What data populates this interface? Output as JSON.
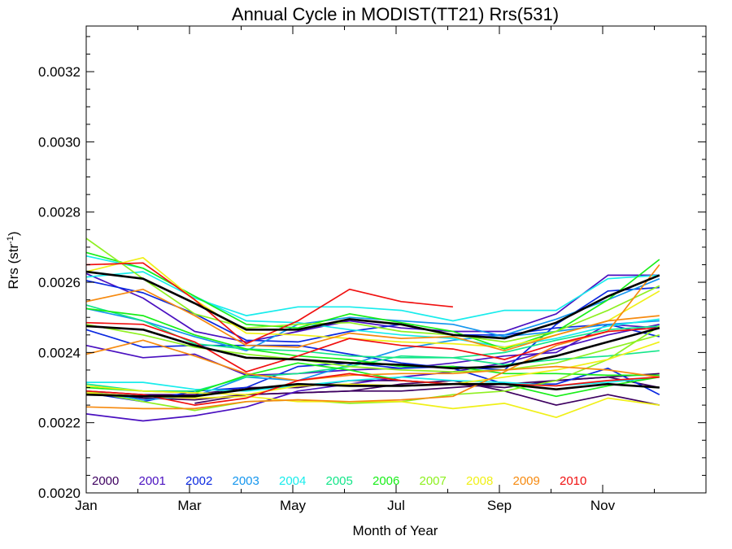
{
  "chart_data": {
    "type": "line",
    "title": "Annual Cycle in MODIST(TT21) Rrs(531)",
    "xlabel": "Month of Year",
    "ylabel": "Rrs (str",
    "ylabel_sup": "-1",
    "ylabel_close": ")",
    "xlim": [
      1,
      13
    ],
    "ylim": [
      0.002,
      0.00333
    ],
    "x": [
      1.0,
      2.1,
      3.1,
      4.1,
      5.1,
      6.1,
      7.1,
      8.1,
      9.1,
      10.1,
      11.1,
      12.1
    ],
    "x_ticks": [
      {
        "value": 1,
        "label": "Jan"
      },
      {
        "value": 3,
        "label": "Mar"
      },
      {
        "value": 5,
        "label": "May"
      },
      {
        "value": 7,
        "label": "Jul"
      },
      {
        "value": 9,
        "label": "Sep"
      },
      {
        "value": 11,
        "label": "Nov"
      }
    ],
    "x_minor_ticks": [
      2,
      4,
      6,
      8,
      10,
      12
    ],
    "y_ticks": [
      {
        "value": 0.002,
        "label": "0.0020"
      },
      {
        "value": 0.0022,
        "label": "0.0022"
      },
      {
        "value": 0.0024,
        "label": "0.0024"
      },
      {
        "value": 0.0026,
        "label": "0.0026"
      },
      {
        "value": 0.0028,
        "label": "0.0028"
      },
      {
        "value": 0.003,
        "label": "0.0030"
      },
      {
        "value": 0.0032,
        "label": "0.0032"
      }
    ],
    "y_minor_step": 5e-05,
    "grid": false,
    "legend_position": "bottom-left inside",
    "legend": [
      {
        "label": "2000",
        "color": "#3d0060"
      },
      {
        "label": "2001",
        "color": "#4a10c0"
      },
      {
        "label": "2002",
        "color": "#0a28e0"
      },
      {
        "label": "2003",
        "color": "#1496ee"
      },
      {
        "label": "2004",
        "color": "#18ecec"
      },
      {
        "label": "2005",
        "color": "#14e68a"
      },
      {
        "label": "2006",
        "color": "#18ee18"
      },
      {
        "label": "2007",
        "color": "#8ef020"
      },
      {
        "label": "2008",
        "color": "#f0f018"
      },
      {
        "label": "2009",
        "color": "#f68a10"
      },
      {
        "label": "2010",
        "color": "#f01010"
      }
    ],
    "series": [
      {
        "color": "#3d0060",
        "values": [
          0.002285,
          0.00227,
          0.002265,
          0.00228,
          0.002285,
          0.00229,
          0.00231,
          0.00232,
          0.00229,
          0.00225,
          0.00228,
          0.00225
        ]
      },
      {
        "color": "#3d0060",
        "values": [
          0.00229,
          0.00228,
          0.00228,
          0.0023,
          0.0023,
          0.00232,
          0.00232,
          0.00231,
          0.0023,
          0.00232,
          0.00233,
          0.0023
        ]
      },
      {
        "color": "#3d0060",
        "values": [
          null,
          null,
          0.002255,
          0.00228,
          0.002285,
          0.00229,
          0.00229,
          0.0023,
          0.00231,
          0.00232,
          0.00233,
          0.00234
        ]
      },
      {
        "color": "#4a10c0",
        "values": [
          0.002225,
          0.002205,
          0.00222,
          0.002245,
          0.00229,
          0.00231,
          0.00233,
          0.002345,
          0.00237,
          0.00241,
          0.00245,
          0.00248
        ]
      },
      {
        "color": "#4a10c0",
        "values": [
          0.00242,
          0.002385,
          0.002395,
          0.002335,
          0.00234,
          0.00235,
          0.002355,
          0.00237,
          0.00239,
          0.0024,
          0.00248,
          0.00247
        ]
      },
      {
        "color": "#4a10c0",
        "values": [
          0.002625,
          0.002555,
          0.00246,
          0.00243,
          0.00246,
          0.00249,
          0.00247,
          0.00246,
          0.00246,
          0.00251,
          0.00262,
          0.00262
        ]
      },
      {
        "color": "#0a28e0",
        "values": [
          0.002285,
          0.00226,
          0.00229,
          0.0023,
          0.00236,
          0.00237,
          0.002355,
          0.00236,
          0.00235,
          0.00248,
          0.002575,
          0.002585
        ]
      },
      {
        "color": "#0a28e0",
        "values": [
          0.002465,
          0.002415,
          0.00242,
          0.00242,
          0.00242,
          0.002395,
          0.00237,
          0.002355,
          0.00231,
          0.00231,
          0.002355,
          0.00228
        ]
      },
      {
        "color": "#0a28e0",
        "values": [
          0.002605,
          0.00257,
          0.00251,
          0.002435,
          0.00243,
          0.00246,
          0.00248,
          0.00245,
          0.00245,
          0.00247,
          0.00248,
          0.002445
        ]
      },
      {
        "color": "#1496ee",
        "values": [
          0.00229,
          0.002265,
          0.002275,
          0.00233,
          0.00232,
          0.002365,
          0.00241,
          0.002435,
          0.00245,
          0.002495,
          0.00255,
          0.00261
        ]
      },
      {
        "color": "#1496ee",
        "values": [
          0.002525,
          0.00249,
          0.002445,
          0.002405,
          0.00248,
          0.0025,
          0.00249,
          0.00248,
          0.002445,
          0.00246,
          0.00248,
          0.00249
        ]
      },
      {
        "color": "#18ecec",
        "values": [
          0.002315,
          0.002315,
          0.002295,
          0.00229,
          0.002305,
          0.00232,
          0.00233,
          0.00232,
          0.002315,
          0.002305,
          0.002315,
          0.00233
        ]
      },
      {
        "color": "#18ecec",
        "values": [
          0.002615,
          0.00263,
          0.002555,
          0.002505,
          0.00253,
          0.00253,
          0.00252,
          0.00249,
          0.00252,
          0.00252,
          0.00261,
          0.00262
        ]
      },
      {
        "color": "#18ecec",
        "values": [
          0.002675,
          0.00264,
          0.00256,
          0.00249,
          0.002485,
          0.002465,
          0.00245,
          0.00244,
          0.002415,
          0.00244,
          0.002475,
          0.002495
        ]
      },
      {
        "color": "#14e68a",
        "values": [
          0.002535,
          0.00249,
          0.002425,
          0.00241,
          0.002405,
          0.00239,
          0.002385,
          0.002385,
          0.0024,
          0.002435,
          0.002465,
          0.002475
        ]
      },
      {
        "color": "#14e68a",
        "values": [
          0.00231,
          0.00229,
          0.00229,
          0.00233,
          0.00234,
          0.00236,
          0.00239,
          0.002385,
          0.002365,
          0.00238,
          0.00239,
          0.002405
        ]
      },
      {
        "color": "#18ee18",
        "values": [
          0.002685,
          0.00264,
          0.00256,
          0.00248,
          0.00247,
          0.00251,
          0.002485,
          0.00246,
          0.00241,
          0.00246,
          0.00255,
          0.002665
        ]
      },
      {
        "color": "#18ee18",
        "values": [
          0.002525,
          0.002505,
          0.00245,
          0.00241,
          0.00239,
          0.00238,
          0.00236,
          0.00236,
          0.00234,
          0.00234,
          0.002335,
          0.002335
        ]
      },
      {
        "color": "#18ee18",
        "values": [
          0.0023,
          0.00229,
          0.002285,
          0.002335,
          0.00237,
          0.00235,
          0.00232,
          0.00231,
          0.00231,
          0.002275,
          0.002305,
          0.00233
        ]
      },
      {
        "color": "#8ef020",
        "values": [
          0.002725,
          0.00261,
          0.00251,
          0.00247,
          0.00248,
          0.002485,
          0.00246,
          0.00245,
          0.00243,
          0.00246,
          0.00252,
          0.00259
        ]
      },
      {
        "color": "#8ef020",
        "values": [
          0.00229,
          0.00226,
          0.002235,
          0.00226,
          0.002265,
          0.002255,
          0.00226,
          0.00228,
          0.00229,
          0.00232,
          0.00238,
          0.002475
        ]
      },
      {
        "color": "#8ef020",
        "values": [
          0.00248,
          0.00245,
          0.002415,
          0.002395,
          0.00238,
          0.00236,
          0.00235,
          0.002345,
          0.00235,
          0.00237,
          0.00241,
          0.00245
        ]
      },
      {
        "color": "#f0f018",
        "values": [
          0.00263,
          0.00267,
          0.00255,
          0.002455,
          0.00245,
          0.00244,
          0.00243,
          0.002425,
          0.002415,
          0.00245,
          0.00249,
          0.002575
        ]
      },
      {
        "color": "#f0f018",
        "values": [
          0.002285,
          0.002275,
          0.00227,
          0.002275,
          0.00226,
          0.00226,
          0.00226,
          0.00224,
          0.002255,
          0.002215,
          0.00227,
          0.00225
        ]
      },
      {
        "color": "#f0f018",
        "values": [
          0.002305,
          0.00229,
          0.002285,
          0.00228,
          0.002305,
          0.00231,
          0.002305,
          0.00231,
          0.00233,
          0.00235,
          0.00238,
          0.00243
        ]
      },
      {
        "color": "#f68a10",
        "values": [
          0.002545,
          0.00258,
          0.002505,
          0.00242,
          0.002415,
          0.002455,
          0.00244,
          0.002445,
          0.002405,
          0.00245,
          0.00249,
          0.002505
        ]
      },
      {
        "color": "#f68a10",
        "values": [
          0.002395,
          0.002435,
          0.00239,
          0.00234,
          0.00232,
          0.002335,
          0.00234,
          0.00234,
          0.00235,
          0.00236,
          0.00235,
          0.00233
        ]
      },
      {
        "color": "#f68a10",
        "values": [
          0.002245,
          0.00224,
          0.00224,
          0.00226,
          0.002265,
          0.00226,
          0.002265,
          0.002275,
          0.002345,
          0.00242,
          0.00246,
          0.00265
        ]
      },
      {
        "color": "#f01010",
        "values": [
          0.00265,
          0.002655,
          0.00255,
          0.002425,
          0.00249,
          0.00258,
          0.002545,
          0.00253,
          null,
          null,
          null,
          null
        ]
      },
      {
        "color": "#f01010",
        "values": [
          0.002485,
          0.00248,
          0.00243,
          0.002345,
          0.00239,
          0.00244,
          0.00242,
          0.00241,
          0.00238,
          0.002425,
          0.00246,
          0.00247
        ]
      },
      {
        "color": "#f01010",
        "values": [
          0.00229,
          0.00228,
          0.00225,
          0.00227,
          0.00232,
          0.00234,
          0.00232,
          0.00231,
          0.00231,
          0.002305,
          0.00232,
          0.00233
        ]
      },
      {
        "color": "#000000",
        "width": 2.6,
        "values": [
          0.00263,
          0.00261,
          0.00254,
          0.002465,
          0.002465,
          0.002495,
          0.00248,
          0.00245,
          0.00244,
          0.002485,
          0.00256,
          0.00262
        ]
      },
      {
        "color": "#000000",
        "width": 2.6,
        "values": [
          0.002475,
          0.002465,
          0.00242,
          0.002385,
          0.00238,
          0.00237,
          0.002365,
          0.002355,
          0.00236,
          0.00239,
          0.00243,
          0.00247
        ]
      },
      {
        "color": "#000000",
        "width": 2.6,
        "values": [
          0.00228,
          0.002275,
          0.002275,
          0.002295,
          0.00231,
          0.002305,
          0.002305,
          0.00231,
          0.00231,
          0.002295,
          0.00231,
          0.0023
        ]
      }
    ]
  }
}
